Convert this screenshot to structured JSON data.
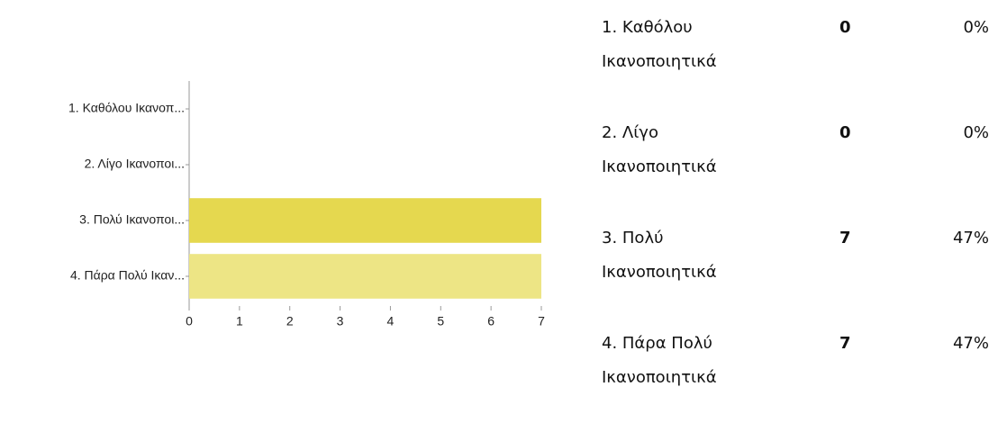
{
  "chart_data": {
    "type": "bar",
    "orientation": "horizontal",
    "categories": [
      "1. Καθόλου Ικανοπ...",
      "2. Λίγο  Ικανοποι...",
      "3. Πολύ  Ικανοποι...",
      "4. Πάρα Πολύ Ικαν..."
    ],
    "values": [
      0,
      0,
      7,
      7
    ],
    "colors": [
      "#e5d84f",
      "#e5d84f",
      "#e5d84f",
      "#ede585"
    ],
    "xlim": [
      0,
      7
    ],
    "xticks": [
      0,
      1,
      2,
      3,
      4,
      5,
      6,
      7
    ],
    "grid": false
  },
  "table": {
    "rows": [
      [
        "1. Καθόλου Ικανοποιητικά",
        "0",
        "0%"
      ],
      [
        "2. Λίγο Ικανοποιητικά",
        "0",
        "0%"
      ],
      [
        "3. Πολύ Ικανοποιητικά",
        "7",
        "47%"
      ],
      [
        "4. Πάρα Πολύ Ικανοποιητικά",
        "7",
        "47%"
      ]
    ]
  }
}
